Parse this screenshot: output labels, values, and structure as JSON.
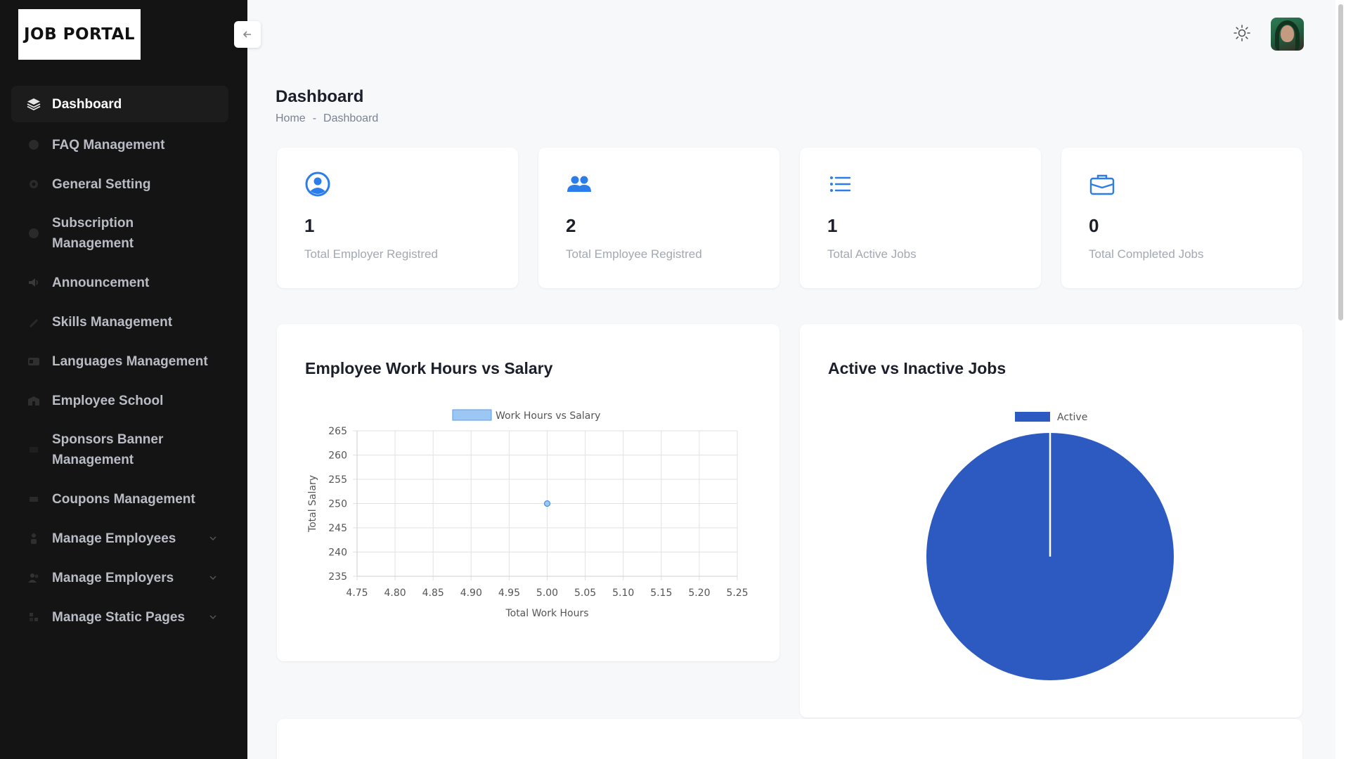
{
  "app": {
    "logo_text": "JOB PORTAL"
  },
  "sidebar": {
    "items": [
      {
        "label": "Dashboard",
        "icon": "layers-icon",
        "active": true
      },
      {
        "label": "FAQ Management",
        "icon": "question-icon"
      },
      {
        "label": "General Setting",
        "icon": "gear-icon"
      },
      {
        "label": "Subscription Management",
        "icon": "question-icon"
      },
      {
        "label": "Announcement",
        "icon": "megaphone-icon"
      },
      {
        "label": "Skills Management",
        "icon": "pen-icon"
      },
      {
        "label": "Languages Management",
        "icon": "id-card-icon"
      },
      {
        "label": "Employee School",
        "icon": "school-icon"
      },
      {
        "label": "Sponsors Banner Management",
        "icon": "banner-icon"
      },
      {
        "label": "Coupons Management",
        "icon": "ticket-icon"
      },
      {
        "label": "Manage Employees",
        "icon": "user-icon",
        "expandable": true
      },
      {
        "label": "Manage Employers",
        "icon": "users-icon",
        "expandable": true
      },
      {
        "label": "Manage Static Pages",
        "icon": "pages-icon",
        "expandable": true
      }
    ]
  },
  "header": {
    "title": "Dashboard",
    "breadcrumb": {
      "home": "Home",
      "separator": "-",
      "current": "Dashboard"
    }
  },
  "stats": [
    {
      "value": "1",
      "label": "Total Employer Registred",
      "icon": "user-circle-icon"
    },
    {
      "value": "2",
      "label": "Total Employee Registred",
      "icon": "users-icon"
    },
    {
      "value": "1",
      "label": "Total Active Jobs",
      "icon": "list-icon"
    },
    {
      "value": "0",
      "label": "Total Completed Jobs",
      "icon": "briefcase-icon"
    }
  ],
  "charts": {
    "scatter_title": "Employee Work Hours vs Salary",
    "pie_title": "Active vs Inactive Jobs"
  },
  "colors": {
    "accent": "#2b7de9",
    "pie": "#2c5ac0",
    "sidebar_bg": "#141414"
  },
  "chart_data": [
    {
      "type": "scatter",
      "title": "Employee Work Hours vs Salary",
      "xlabel": "Total Work Hours",
      "ylabel": "Total Salary",
      "series": [
        {
          "name": "Work Hours vs Salary",
          "points": [
            {
              "x": 5.0,
              "y": 250
            }
          ]
        }
      ],
      "xlim": [
        4.75,
        5.25
      ],
      "ylim": [
        235,
        265
      ],
      "xticks": [
        "4.75",
        "4.80",
        "4.85",
        "4.90",
        "4.95",
        "5.00",
        "5.05",
        "5.10",
        "5.15",
        "5.20",
        "5.25"
      ],
      "yticks": [
        "265",
        "260",
        "255",
        "250",
        "245",
        "240",
        "235"
      ],
      "grid": true,
      "legend": "top"
    },
    {
      "type": "pie",
      "title": "Active vs Inactive Jobs",
      "categories": [
        "Active"
      ],
      "values": [
        1
      ],
      "legend": "top"
    }
  ]
}
